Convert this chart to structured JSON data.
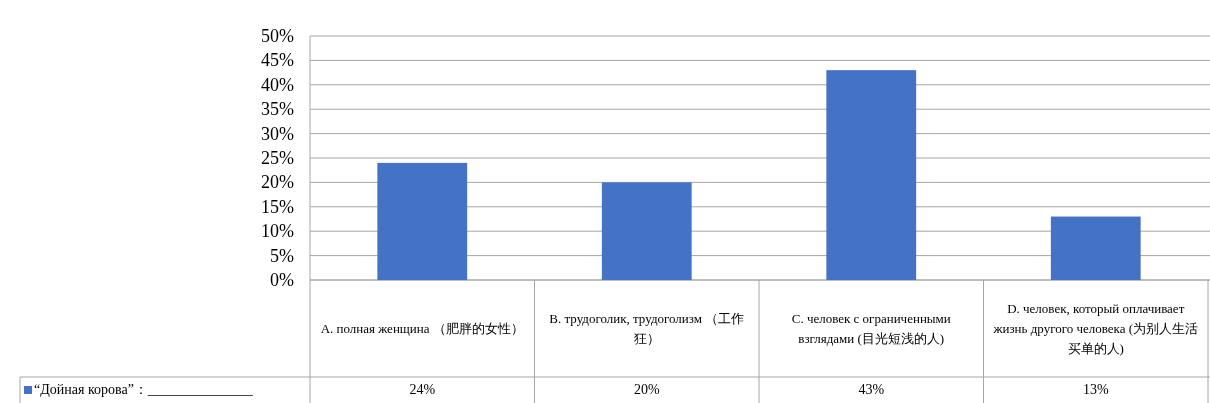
{
  "chart_data": {
    "type": "bar",
    "categories": [
      "A. полная женщина （肥胖的女性）",
      "B. трудоголик, трудоголизм （工作狂）",
      "C. человек с ограниченными взглядами (目光短浅的人)",
      "D. человек, который оплачивает жизнь другого человека (为别人生活买单的人)"
    ],
    "series": [
      {
        "name": "“Дойная корова”：_______________",
        "color": "#4472c4",
        "values": [
          24,
          20,
          43,
          13
        ],
        "value_labels": [
          "24%",
          "20%",
          "43%",
          "13%"
        ]
      }
    ],
    "ylim": [
      0,
      50
    ],
    "yticks": [
      {
        "value": 0,
        "label": "0%"
      },
      {
        "value": 5,
        "label": "5%"
      },
      {
        "value": 10,
        "label": "10%"
      },
      {
        "value": 15,
        "label": "15%"
      },
      {
        "value": 20,
        "label": "20%"
      },
      {
        "value": 25,
        "label": "25%"
      },
      {
        "value": 30,
        "label": "30%"
      },
      {
        "value": 35,
        "label": "35%"
      },
      {
        "value": 40,
        "label": "40%"
      },
      {
        "value": 45,
        "label": "45%"
      },
      {
        "value": 50,
        "label": "50%"
      }
    ],
    "grid": "y",
    "legend": "bottom"
  }
}
